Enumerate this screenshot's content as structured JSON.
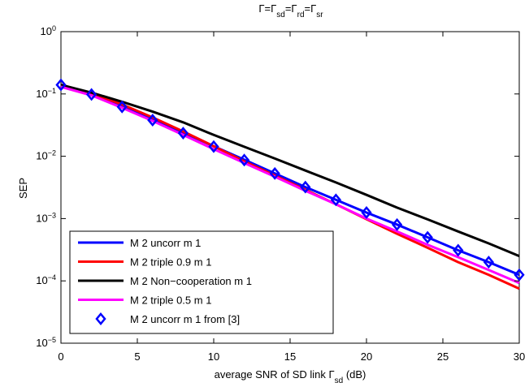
{
  "chart_data": {
    "type": "line",
    "title": {
      "parts": [
        {
          "t": "Γ=Γ"
        },
        {
          "t": "sd",
          "sub": true
        },
        {
          "t": "=Γ"
        },
        {
          "t": "rd",
          "sub": true
        },
        {
          "t": "=Γ"
        },
        {
          "t": "sr",
          "sub": true
        }
      ]
    },
    "xlabel": {
      "parts": [
        {
          "t": "average SNR of SD link Γ"
        },
        {
          "t": "sd",
          "sub": true
        },
        {
          "t": "  (dB)"
        }
      ]
    },
    "ylabel": "SEP",
    "xlim": [
      0,
      30
    ],
    "ylim": [
      1e-05,
      1
    ],
    "yscale": "log",
    "grid": false,
    "legend_position": "bottom-left",
    "x_ticks": [
      0,
      5,
      10,
      15,
      20,
      25,
      30
    ],
    "x_tick_labels": [
      "0",
      "5",
      "10",
      "15",
      "20",
      "25",
      "30"
    ],
    "y_ticks": [
      {
        "value": 1,
        "base": "10",
        "exp": "0"
      },
      {
        "value": 0.1,
        "base": "10",
        "exp": "−1"
      },
      {
        "value": 0.01,
        "base": "10",
        "exp": "−2"
      },
      {
        "value": 0.001,
        "base": "10",
        "exp": "−3"
      },
      {
        "value": 0.0001,
        "base": "10",
        "exp": "−4"
      },
      {
        "value": 1e-05,
        "base": "10",
        "exp": "−5"
      }
    ],
    "series": [
      {
        "name": "M 2 uncorr m 1",
        "color": "#0000ff",
        "style": "line",
        "x": [
          0,
          2,
          4,
          6,
          8,
          10,
          12,
          14,
          16,
          18,
          20,
          22,
          24,
          26,
          28,
          30
        ],
        "y": [
          0.14,
          0.1,
          0.065,
          0.04,
          0.024,
          0.0145,
          0.0088,
          0.0053,
          0.0032,
          0.002,
          0.00125,
          0.0008,
          0.0005,
          0.00031,
          0.0002,
          0.000125
        ]
      },
      {
        "name": "M 2 triple 0.9 m 1",
        "color": "#ff0000",
        "style": "line",
        "x": [
          0,
          2,
          4,
          6,
          8,
          10,
          12,
          14,
          16,
          18,
          20,
          22,
          24,
          26,
          28,
          30
        ],
        "y": [
          0.14,
          0.102,
          0.068,
          0.042,
          0.025,
          0.0145,
          0.0083,
          0.0049,
          0.0029,
          0.0017,
          0.00098,
          0.00057,
          0.00034,
          0.0002,
          0.000125,
          7.5e-05
        ]
      },
      {
        "name": "M 2 Non−cooperation m 1",
        "color": "#000000",
        "style": "line",
        "x": [
          0,
          2,
          4,
          6,
          8,
          10,
          12,
          14,
          16,
          18,
          20,
          22,
          24,
          26,
          28,
          30
        ],
        "y": [
          0.14,
          0.105,
          0.075,
          0.052,
          0.035,
          0.022,
          0.0142,
          0.0092,
          0.0059,
          0.0038,
          0.0024,
          0.0015,
          0.00097,
          0.00062,
          0.0004,
          0.00025
        ]
      },
      {
        "name": "M 2 triple 0.5 m 1",
        "color": "#ff00ff",
        "style": "line",
        "x": [
          0,
          2,
          4,
          6,
          8,
          10,
          12,
          14,
          16,
          18,
          20,
          22,
          24,
          26,
          28,
          30
        ],
        "y": [
          0.13,
          0.095,
          0.06,
          0.037,
          0.022,
          0.013,
          0.0078,
          0.0047,
          0.0028,
          0.0017,
          0.001,
          0.00062,
          0.00038,
          0.00024,
          0.00015,
          9.25e-05
        ]
      },
      {
        "name": "M 2 uncorr m 1 from [3]",
        "color": "#0000ff",
        "style": "marker",
        "marker": "diamond",
        "x": [
          0,
          2,
          4,
          6,
          8,
          10,
          12,
          14,
          16,
          18,
          20,
          22,
          24,
          26,
          28,
          30
        ],
        "y": [
          0.14,
          0.098,
          0.062,
          0.038,
          0.0235,
          0.0143,
          0.0087,
          0.0053,
          0.0032,
          0.002,
          0.00125,
          0.0008,
          0.0005,
          0.00031,
          0.0002,
          0.000125
        ]
      }
    ]
  }
}
